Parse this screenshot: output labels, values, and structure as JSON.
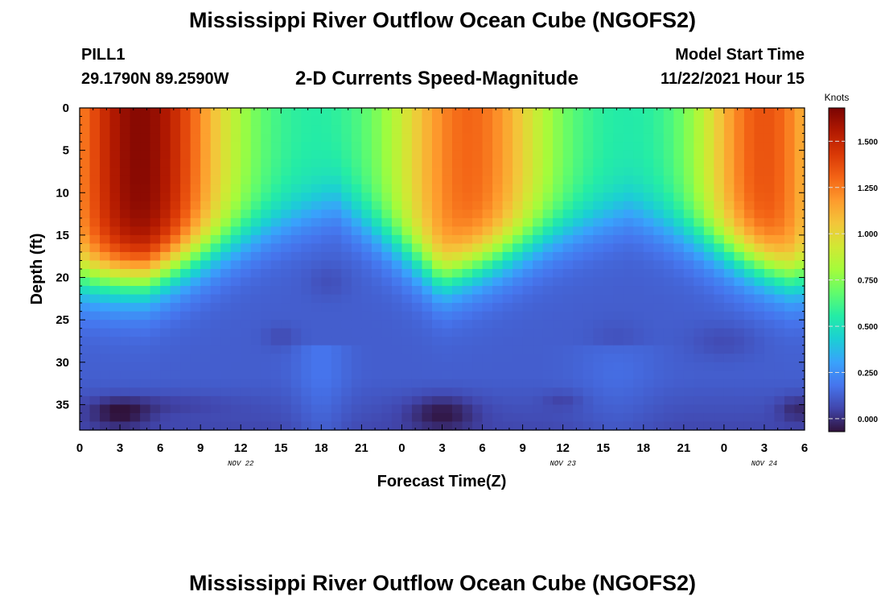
{
  "page": {
    "title": "Mississippi River Outflow Ocean Cube (NGOFS2)",
    "station": "PILL1",
    "coords": "29.1790N  89.2590W",
    "subtitle": "2-D Currents Speed-Magnitude",
    "model_label": "Model Start Time",
    "model_time": "11/22/2021 Hour 15",
    "second_title": "Mississippi River Outflow Ocean Cube (NGOFS2)"
  },
  "chart_data": {
    "type": "heatmap",
    "xlabel": "Forecast Time(Z)",
    "ylabel": "Depth (ft)",
    "x_tick_labels": [
      "0",
      "3",
      "6",
      "9",
      "12",
      "15",
      "18",
      "21",
      "0",
      "3",
      "6",
      "9",
      "12",
      "15",
      "18",
      "21",
      "0",
      "3",
      "6"
    ],
    "x_range_hours": [
      0,
      54
    ],
    "date_labels": [
      {
        "text": "NOV 22",
        "hour": 12
      },
      {
        "text": "NOV 23",
        "hour": 36
      },
      {
        "text": "NOV 24",
        "hour": 51
      }
    ],
    "y_ticks": [
      0,
      5,
      10,
      15,
      20,
      25,
      30,
      35
    ],
    "ylim": [
      0,
      38
    ],
    "y_inverted": true,
    "colorbar": {
      "label": "Knots",
      "ticks": [
        "1.500",
        "1.250",
        "1.000",
        "0.750",
        "0.500",
        "0.250",
        "0.000"
      ],
      "tick_values": [
        1.5,
        1.25,
        1.0,
        0.75,
        0.5,
        0.25,
        0.0
      ],
      "range": [
        -0.07,
        1.68
      ],
      "colors": [
        "#30123b",
        "#4145ab",
        "#4675ed",
        "#39a2fc",
        "#1bcfd4",
        "#24eca6",
        "#61fc6c",
        "#a4fc3b",
        "#d1e834",
        "#f3c63a",
        "#fe9b2d",
        "#f36315",
        "#d93806",
        "#b11901",
        "#7a0403"
      ]
    },
    "surface_speed_profile": {
      "description_hours": [
        0,
        5,
        14,
        19,
        27,
        35,
        41,
        53,
        54
      ],
      "upper_layer_depth_ft": [
        20,
        20,
        14,
        11,
        20,
        15,
        12,
        20,
        20
      ]
    }
  }
}
